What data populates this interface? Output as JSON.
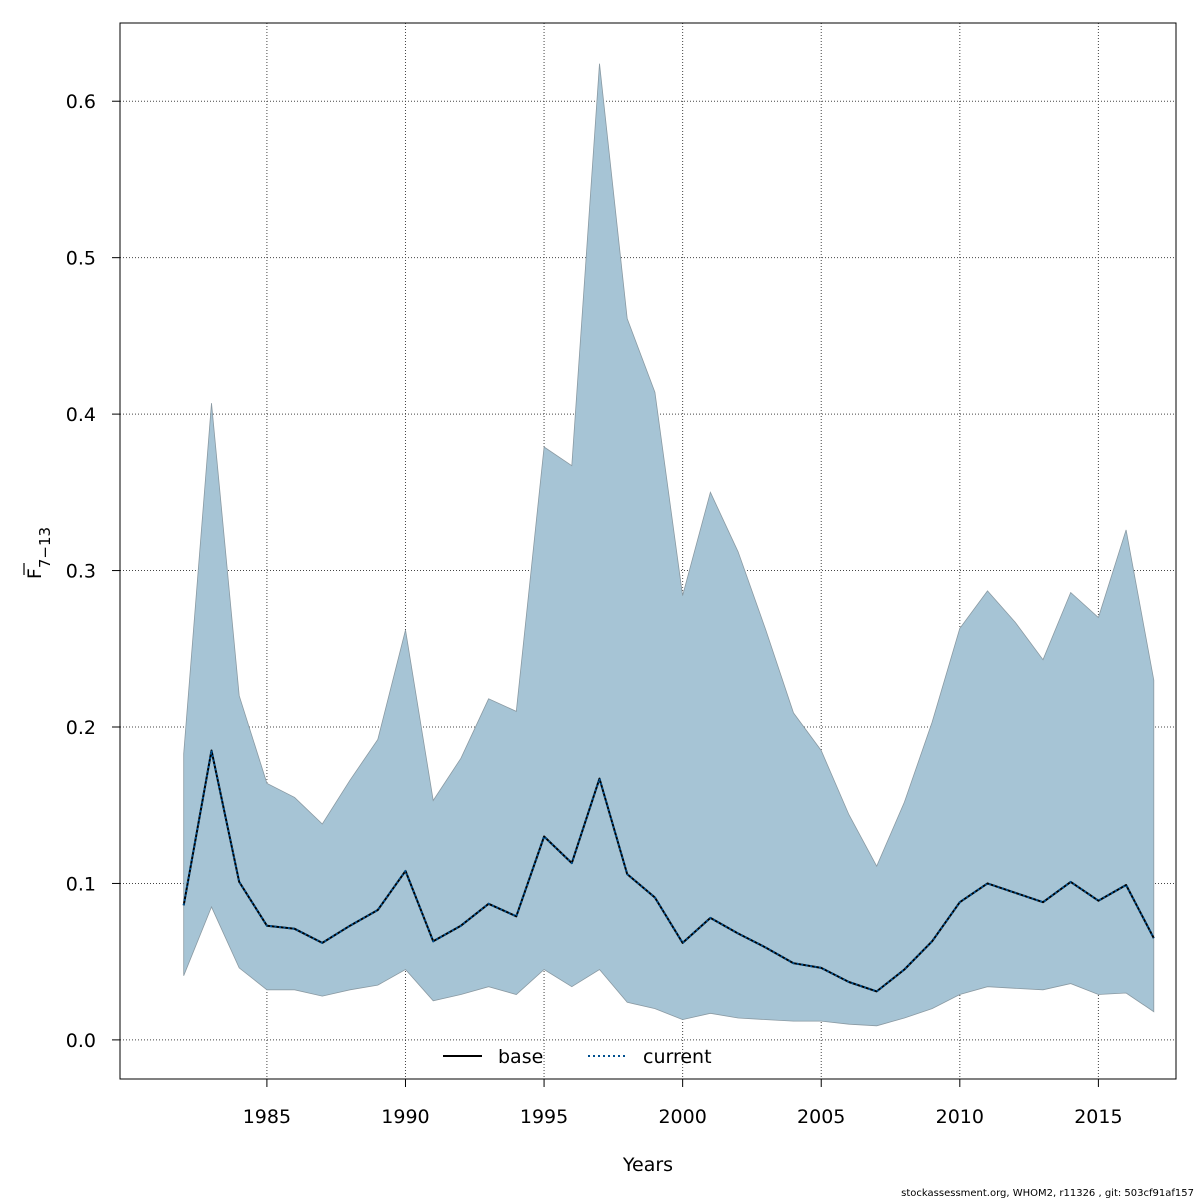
{
  "chart_data": {
    "type": "area",
    "xlabel": "Years",
    "ylabel": {
      "base": "F",
      "subscript": "7−13"
    },
    "xlim": [
      1979.7,
      2017.8
    ],
    "ylim": [
      -0.025,
      0.65
    ],
    "x_ticks": [
      1985,
      1990,
      1995,
      2000,
      2005,
      2010,
      2015
    ],
    "y_ticks": [
      0.0,
      0.1,
      0.2,
      0.3,
      0.4,
      0.5,
      0.6
    ],
    "y_tick_labels": [
      "0.0",
      "0.1",
      "0.2",
      "0.3",
      "0.4",
      "0.5",
      "0.6"
    ],
    "grid": true,
    "legend_position": "bottom-center",
    "x": [
      1982,
      1983,
      1984,
      1985,
      1986,
      1987,
      1988,
      1989,
      1990,
      1991,
      1992,
      1993,
      1994,
      1995,
      1996,
      1997,
      1998,
      1999,
      2000,
      2001,
      2002,
      2003,
      2004,
      2005,
      2006,
      2007,
      2008,
      2009,
      2010,
      2011,
      2012,
      2013,
      2014,
      2015,
      2016,
      2017
    ],
    "band": {
      "lower": [
        0.041,
        0.085,
        0.046,
        0.032,
        0.032,
        0.028,
        0.032,
        0.035,
        0.045,
        0.025,
        0.029,
        0.034,
        0.029,
        0.045,
        0.034,
        0.045,
        0.024,
        0.02,
        0.013,
        0.017,
        0.014,
        0.013,
        0.012,
        0.012,
        0.01,
        0.009,
        0.014,
        0.02,
        0.029,
        0.034,
        0.033,
        0.032,
        0.036,
        0.029,
        0.03,
        0.018
      ],
      "upper": [
        0.183,
        0.407,
        0.22,
        0.164,
        0.155,
        0.138,
        0.166,
        0.192,
        0.262,
        0.153,
        0.18,
        0.218,
        0.21,
        0.379,
        0.367,
        0.624,
        0.461,
        0.414,
        0.284,
        0.35,
        0.312,
        0.262,
        0.209,
        0.185,
        0.144,
        0.111,
        0.152,
        0.203,
        0.263,
        0.287,
        0.267,
        0.243,
        0.286,
        0.27,
        0.326,
        0.23
      ],
      "color": "#a6c4d5",
      "border_color": "#8a9aa3"
    },
    "series": [
      {
        "name": "base",
        "style": "solid",
        "color": "#000000",
        "values": [
          0.086,
          0.185,
          0.101,
          0.073,
          0.071,
          0.062,
          0.073,
          0.083,
          0.108,
          0.063,
          0.073,
          0.087,
          0.079,
          0.13,
          0.113,
          0.167,
          0.106,
          0.091,
          0.062,
          0.078,
          0.068,
          0.059,
          0.049,
          0.046,
          0.037,
          0.031,
          0.045,
          0.063,
          0.088,
          0.1,
          0.094,
          0.088,
          0.101,
          0.089,
          0.099,
          0.065
        ]
      },
      {
        "name": "current",
        "style": "dotted",
        "color": "#00508f",
        "values": [
          0.086,
          0.185,
          0.101,
          0.073,
          0.071,
          0.062,
          0.073,
          0.083,
          0.108,
          0.063,
          0.073,
          0.087,
          0.079,
          0.13,
          0.113,
          0.167,
          0.106,
          0.091,
          0.062,
          0.078,
          0.068,
          0.059,
          0.049,
          0.046,
          0.037,
          0.031,
          0.045,
          0.063,
          0.088,
          0.1,
          0.094,
          0.088,
          0.101,
          0.089,
          0.099,
          0.065
        ]
      }
    ]
  },
  "footer_text": "stockassessment.org, WHOM2, r11326 , git: 503cf91af157"
}
